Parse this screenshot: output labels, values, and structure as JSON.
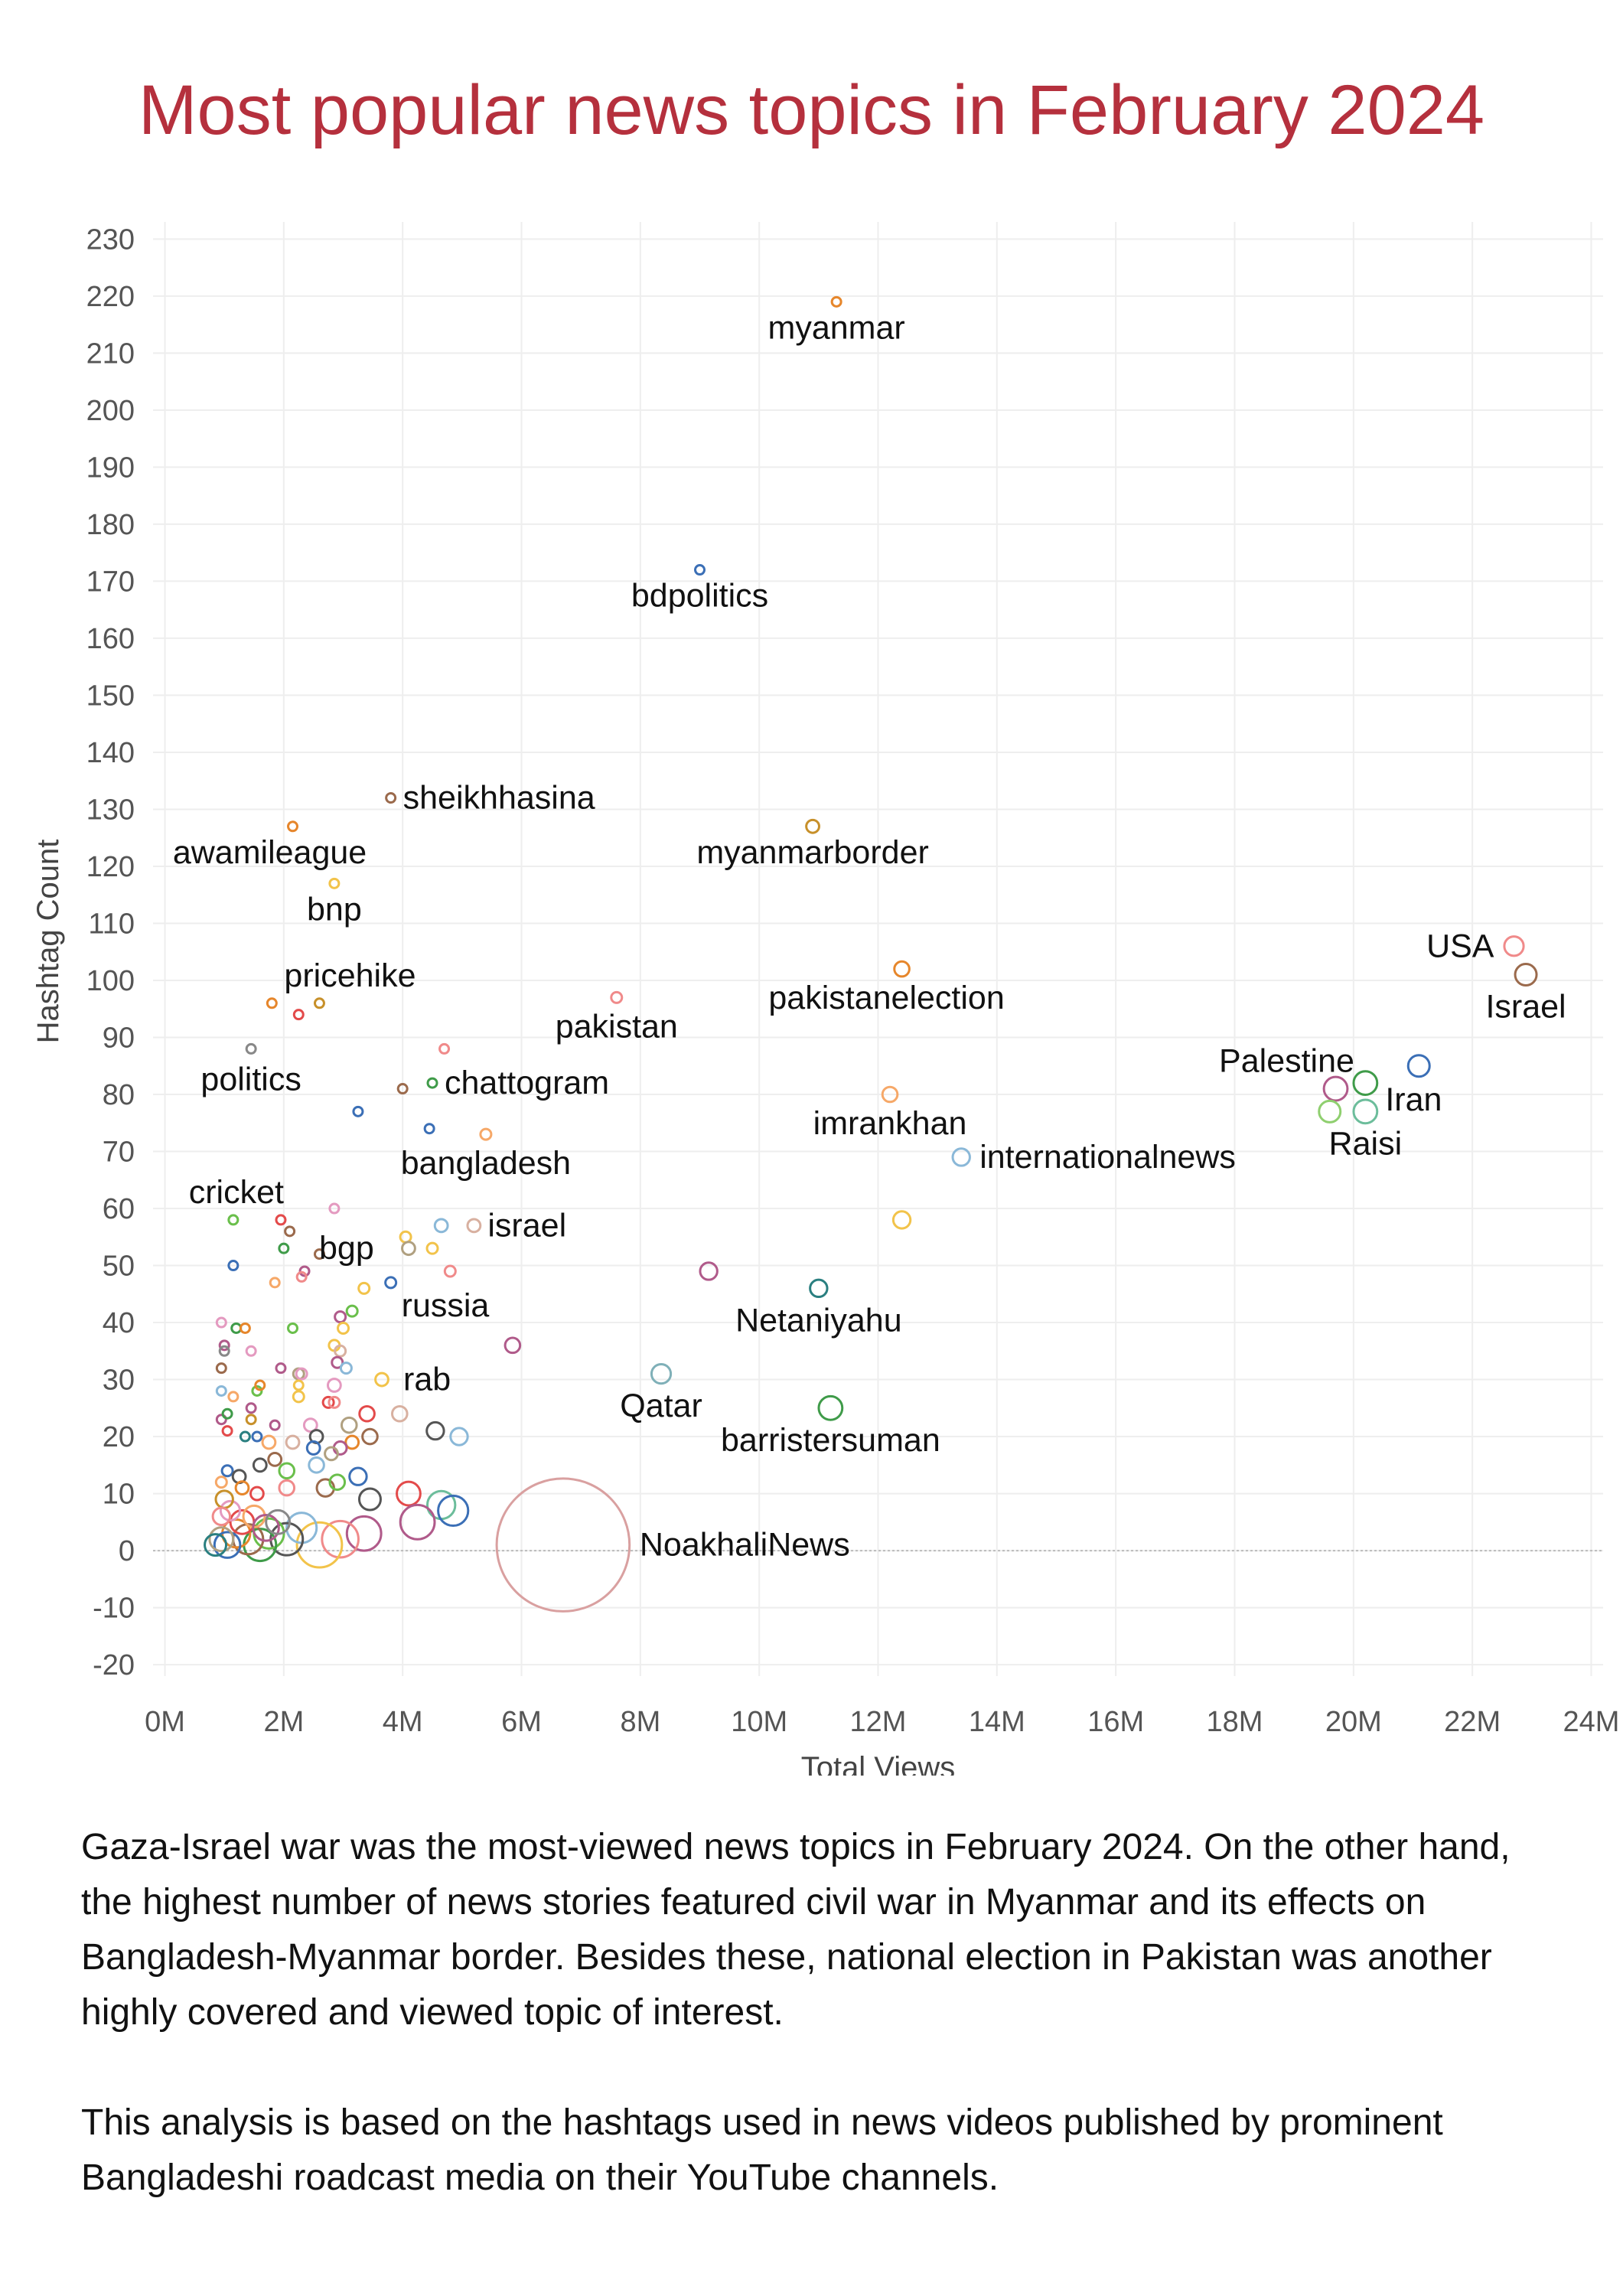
{
  "title": "Most popular news topics in February 2024",
  "paragraphs": [
    "Gaza-Israel war was the most-viewed news topics in February 2024. On the other hand, the highest number of news stories featured civil war in Myanmar and its effects on Bangladesh-Myanmar border. Besides these, national election in Pakistan was another highly covered and viewed topic of interest.",
    "This analysis is based on the hashtags used in news videos published by prominent Bangladeshi roadcast media on their YouTube channels."
  ],
  "chart_data": {
    "type": "scatter",
    "xlabel": "Total Views",
    "ylabel": "Hashtag Count",
    "xlim": [
      -0.2,
      24.2
    ],
    "ylim": [
      -22,
      233
    ],
    "x_unit": "M",
    "x_ticks": [
      0,
      2,
      4,
      6,
      8,
      10,
      12,
      14,
      16,
      18,
      20,
      22,
      24
    ],
    "x_tick_labels": [
      "0M",
      "2M",
      "4M",
      "6M",
      "8M",
      "10M",
      "12M",
      "14M",
      "16M",
      "18M",
      "20M",
      "22M",
      "24M"
    ],
    "y_ticks": [
      -20,
      -10,
      0,
      10,
      20,
      30,
      40,
      50,
      60,
      70,
      80,
      90,
      100,
      110,
      120,
      130,
      140,
      150,
      160,
      170,
      180,
      190,
      200,
      210,
      220,
      230
    ],
    "y_tick_labels": [
      "-20",
      "-10",
      "0",
      "10",
      "20",
      "30",
      "40",
      "50",
      "60",
      "70",
      "80",
      "90",
      "100",
      "110",
      "120",
      "130",
      "140",
      "150",
      "160",
      "170",
      "180",
      "190",
      "200",
      "210",
      "220",
      "230"
    ],
    "grid": true,
    "marker": "open circles, size varies",
    "labeled_points": [
      {
        "label": "myanmar",
        "x": 11.3,
        "y": 219,
        "color": "#e6862b"
      },
      {
        "label": "bdpolitics",
        "x": 9.0,
        "y": 172,
        "color": "#3b6fb6"
      },
      {
        "label": "sheikhhasina",
        "x": 3.8,
        "y": 132,
        "color": "#9b6a4c"
      },
      {
        "label": "awamileague",
        "x": 2.15,
        "y": 127,
        "color": "#e6862b"
      },
      {
        "label": "myanmarborder",
        "x": 10.9,
        "y": 127,
        "color": "#c7902a"
      },
      {
        "label": "bnp",
        "x": 2.85,
        "y": 117,
        "color": "#f2c34a"
      },
      {
        "label": "USA",
        "x": 22.7,
        "y": 106,
        "color": "#f08a8a"
      },
      {
        "label": "pakistanelection",
        "x": 12.4,
        "y": 102,
        "color": "#e6862b"
      },
      {
        "label": "Israel",
        "x": 22.9,
        "y": 101,
        "color": "#9b6a4c"
      },
      {
        "label": "pricehike",
        "x": 2.6,
        "y": 96,
        "color": "#c7902a"
      },
      {
        "label": "pakistan",
        "x": 7.6,
        "y": 97,
        "color": "#f08a8a"
      },
      {
        "label": "politics",
        "x": 1.45,
        "y": 88,
        "color": "#888888"
      },
      {
        "label": "Palestine",
        "x": 19.7,
        "y": 81,
        "color": "#b05a8a"
      },
      {
        "label": "Iran",
        "x": 20.2,
        "y": 82,
        "color": "#3f9b49"
      },
      {
        "label": "chattogram",
        "x": 4.5,
        "y": 82,
        "color": "#3f9b49"
      },
      {
        "label": "imrankhan",
        "x": 12.2,
        "y": 80,
        "color": "#f6a868"
      },
      {
        "label": "bangladesh",
        "x": 5.4,
        "y": 73,
        "color": "#f6a868"
      },
      {
        "label": "Raisi",
        "x": 20.2,
        "y": 77,
        "color": "#6cbd9b"
      },
      {
        "label": "internationalnews",
        "x": 13.4,
        "y": 69,
        "color": "#8ab8d8"
      },
      {
        "label": "cricket",
        "x": 1.15,
        "y": 58,
        "color": "#6abf4b"
      },
      {
        "label": "israel",
        "x": 5.2,
        "y": 57,
        "color": "#d8b0a0"
      },
      {
        "label": "bgp",
        "x": 3.75,
        "y": 53,
        "color": "#b0a080"
      },
      {
        "label": "russia",
        "x": 3.8,
        "y": 47,
        "color": "#3b6fb6"
      },
      {
        "label": "Netaniyahu",
        "x": 11.0,
        "y": 46,
        "color": "#2a7f80"
      },
      {
        "label": "rab",
        "x": 3.65,
        "y": 30,
        "color": "#f2c34a"
      },
      {
        "label": "Qatar",
        "x": 8.35,
        "y": 31,
        "color": "#7fb0b8"
      },
      {
        "label": "barristersuman",
        "x": 11.2,
        "y": 25,
        "color": "#3f9b49"
      },
      {
        "label": "NoakhaliNews",
        "x": 6.7,
        "y": 1,
        "color": "#d9a0a0"
      }
    ],
    "points": [
      {
        "x": 11.3,
        "y": 219,
        "size": 0.4,
        "color": "#e6862b"
      },
      {
        "x": 9.0,
        "y": 172,
        "size": 0.4,
        "color": "#3b6fb6"
      },
      {
        "x": 3.8,
        "y": 132,
        "size": 0.4,
        "color": "#9b6a4c"
      },
      {
        "x": 2.15,
        "y": 127,
        "size": 0.3,
        "color": "#e6862b"
      },
      {
        "x": 10.9,
        "y": 127,
        "size": 0.6,
        "color": "#c7902a"
      },
      {
        "x": 2.85,
        "y": 117,
        "size": 0.3,
        "color": "#f2c34a"
      },
      {
        "x": 22.7,
        "y": 106,
        "size": 0.9,
        "color": "#f08a8a"
      },
      {
        "x": 12.4,
        "y": 102,
        "size": 0.7,
        "color": "#e6862b"
      },
      {
        "x": 22.9,
        "y": 101,
        "size": 1.0,
        "color": "#9b6a4c"
      },
      {
        "x": 1.8,
        "y": 96,
        "size": 0.3,
        "color": "#e6862b"
      },
      {
        "x": 2.6,
        "y": 96,
        "size": 0.3,
        "color": "#c7902a"
      },
      {
        "x": 7.6,
        "y": 97,
        "size": 0.5,
        "color": "#f08a8a"
      },
      {
        "x": 1.45,
        "y": 88,
        "size": 0.3,
        "color": "#888888"
      },
      {
        "x": 4.7,
        "y": 88,
        "size": 0.4,
        "color": "#f08a8a"
      },
      {
        "x": 2.25,
        "y": 94,
        "size": 0.3,
        "color": "#e34a4a"
      },
      {
        "x": 21.1,
        "y": 85,
        "size": 1.0,
        "color": "#3b6fb6"
      },
      {
        "x": 19.7,
        "y": 81,
        "size": 1.1,
        "color": "#b05a8a"
      },
      {
        "x": 20.2,
        "y": 82,
        "size": 1.1,
        "color": "#3f9b49"
      },
      {
        "x": 19.6,
        "y": 77,
        "size": 1.0,
        "color": "#8fcf6f"
      },
      {
        "x": 20.2,
        "y": 77,
        "size": 1.1,
        "color": "#6cbd9b"
      },
      {
        "x": 4.5,
        "y": 82,
        "size": 0.4,
        "color": "#3f9b49"
      },
      {
        "x": 4.0,
        "y": 81,
        "size": 0.4,
        "color": "#9b6a4c"
      },
      {
        "x": 12.2,
        "y": 80,
        "size": 0.7,
        "color": "#f6a868"
      },
      {
        "x": 3.25,
        "y": 77,
        "size": 0.4,
        "color": "#3b6fb6"
      },
      {
        "x": 4.45,
        "y": 74,
        "size": 0.4,
        "color": "#3b6fb6"
      },
      {
        "x": 5.4,
        "y": 73,
        "size": 0.5,
        "color": "#f6a868"
      },
      {
        "x": 13.4,
        "y": 69,
        "size": 0.8,
        "color": "#8ab8d8"
      },
      {
        "x": 1.15,
        "y": 58,
        "size": 0.3,
        "color": "#6abf4b"
      },
      {
        "x": 1.95,
        "y": 58,
        "size": 0.3,
        "color": "#e34a4a"
      },
      {
        "x": 2.85,
        "y": 60,
        "size": 0.4,
        "color": "#e49ac0"
      },
      {
        "x": 2.1,
        "y": 56,
        "size": 0.4,
        "color": "#9b6a4c"
      },
      {
        "x": 4.65,
        "y": 57,
        "size": 0.6,
        "color": "#8ab8d8"
      },
      {
        "x": 5.2,
        "y": 57,
        "size": 0.6,
        "color": "#d8b0a0"
      },
      {
        "x": 12.4,
        "y": 58,
        "size": 0.8,
        "color": "#f2c34a"
      },
      {
        "x": 4.05,
        "y": 55,
        "size": 0.5,
        "color": "#f2c34a"
      },
      {
        "x": 4.5,
        "y": 53,
        "size": 0.5,
        "color": "#f2c34a"
      },
      {
        "x": 4.1,
        "y": 53,
        "size": 0.6,
        "color": "#b0a080"
      },
      {
        "x": 2.0,
        "y": 53,
        "size": 0.4,
        "color": "#3f9b49"
      },
      {
        "x": 2.6,
        "y": 52,
        "size": 0.4,
        "color": "#9b6a4c"
      },
      {
        "x": 1.15,
        "y": 50,
        "size": 0.3,
        "color": "#3b6fb6"
      },
      {
        "x": 2.35,
        "y": 49,
        "size": 0.4,
        "color": "#b05a8a"
      },
      {
        "x": 4.8,
        "y": 49,
        "size": 0.5,
        "color": "#f08a8a"
      },
      {
        "x": 2.3,
        "y": 48,
        "size": 0.4,
        "color": "#f08a8a"
      },
      {
        "x": 9.15,
        "y": 49,
        "size": 0.8,
        "color": "#b05a8a"
      },
      {
        "x": 1.85,
        "y": 47,
        "size": 0.4,
        "color": "#f6a868"
      },
      {
        "x": 3.8,
        "y": 47,
        "size": 0.5,
        "color": "#3b6fb6"
      },
      {
        "x": 3.35,
        "y": 46,
        "size": 0.5,
        "color": "#f2c34a"
      },
      {
        "x": 11.0,
        "y": 46,
        "size": 0.8,
        "color": "#2a7f80"
      },
      {
        "x": 3.15,
        "y": 42,
        "size": 0.5,
        "color": "#6abf4b"
      },
      {
        "x": 2.95,
        "y": 41,
        "size": 0.5,
        "color": "#b05a8a"
      },
      {
        "x": 3.0,
        "y": 39,
        "size": 0.5,
        "color": "#f2c34a"
      },
      {
        "x": 2.15,
        "y": 39,
        "size": 0.4,
        "color": "#6abf4b"
      },
      {
        "x": 0.95,
        "y": 40,
        "size": 0.3,
        "color": "#e49ac0"
      },
      {
        "x": 1.2,
        "y": 39,
        "size": 0.3,
        "color": "#3f9b49"
      },
      {
        "x": 1.35,
        "y": 39,
        "size": 0.4,
        "color": "#e6862b"
      },
      {
        "x": 1.0,
        "y": 36,
        "size": 0.3,
        "color": "#b05a8a"
      },
      {
        "x": 1.0,
        "y": 35,
        "size": 0.3,
        "color": "#888888"
      },
      {
        "x": 1.45,
        "y": 35,
        "size": 0.4,
        "color": "#e49ac0"
      },
      {
        "x": 2.85,
        "y": 36,
        "size": 0.5,
        "color": "#f2c34a"
      },
      {
        "x": 2.95,
        "y": 35,
        "size": 0.5,
        "color": "#d8b0a0"
      },
      {
        "x": 5.85,
        "y": 36,
        "size": 0.7,
        "color": "#b05a8a"
      },
      {
        "x": 0.95,
        "y": 32,
        "size": 0.3,
        "color": "#9b6a4c"
      },
      {
        "x": 1.95,
        "y": 32,
        "size": 0.4,
        "color": "#b05a8a"
      },
      {
        "x": 2.25,
        "y": 31,
        "size": 0.5,
        "color": "#b0a080"
      },
      {
        "x": 2.3,
        "y": 31,
        "size": 0.5,
        "color": "#e49ac0"
      },
      {
        "x": 2.9,
        "y": 33,
        "size": 0.5,
        "color": "#b05a8a"
      },
      {
        "x": 3.05,
        "y": 32,
        "size": 0.5,
        "color": "#8ab8d8"
      },
      {
        "x": 2.85,
        "y": 29,
        "size": 0.6,
        "color": "#e49ac0"
      },
      {
        "x": 3.65,
        "y": 30,
        "size": 0.6,
        "color": "#f2c34a"
      },
      {
        "x": 8.35,
        "y": 31,
        "size": 0.9,
        "color": "#7fb0b8"
      },
      {
        "x": 2.25,
        "y": 29,
        "size": 0.4,
        "color": "#f2c34a"
      },
      {
        "x": 0.95,
        "y": 28,
        "size": 0.3,
        "color": "#8ab8d8"
      },
      {
        "x": 1.15,
        "y": 27,
        "size": 0.3,
        "color": "#f6a868"
      },
      {
        "x": 1.55,
        "y": 28,
        "size": 0.4,
        "color": "#6abf4b"
      },
      {
        "x": 1.6,
        "y": 29,
        "size": 0.4,
        "color": "#e6862b"
      },
      {
        "x": 2.25,
        "y": 27,
        "size": 0.5,
        "color": "#f2c34a"
      },
      {
        "x": 2.75,
        "y": 26,
        "size": 0.5,
        "color": "#e34a4a"
      },
      {
        "x": 2.85,
        "y": 26,
        "size": 0.5,
        "color": "#f08a8a"
      },
      {
        "x": 11.2,
        "y": 25,
        "size": 1.1,
        "color": "#3f9b49"
      },
      {
        "x": 0.95,
        "y": 23,
        "size": 0.3,
        "color": "#b05a8a"
      },
      {
        "x": 1.05,
        "y": 24,
        "size": 0.3,
        "color": "#3f9b49"
      },
      {
        "x": 1.45,
        "y": 25,
        "size": 0.4,
        "color": "#b05a8a"
      },
      {
        "x": 1.45,
        "y": 23,
        "size": 0.4,
        "color": "#c7902a"
      },
      {
        "x": 1.05,
        "y": 21,
        "size": 0.3,
        "color": "#e34a4a"
      },
      {
        "x": 1.35,
        "y": 20,
        "size": 0.4,
        "color": "#2a7f80"
      },
      {
        "x": 1.55,
        "y": 20,
        "size": 0.4,
        "color": "#3b6fb6"
      },
      {
        "x": 1.85,
        "y": 22,
        "size": 0.4,
        "color": "#b05a8a"
      },
      {
        "x": 2.45,
        "y": 22,
        "size": 0.6,
        "color": "#e49ac0"
      },
      {
        "x": 3.1,
        "y": 22,
        "size": 0.7,
        "color": "#b0a080"
      },
      {
        "x": 3.4,
        "y": 24,
        "size": 0.7,
        "color": "#e34a4a"
      },
      {
        "x": 3.95,
        "y": 24,
        "size": 0.7,
        "color": "#d8b0a0"
      },
      {
        "x": 3.45,
        "y": 20,
        "size": 0.7,
        "color": "#9b6a4c"
      },
      {
        "x": 4.55,
        "y": 21,
        "size": 0.8,
        "color": "#555555"
      },
      {
        "x": 4.95,
        "y": 20,
        "size": 0.8,
        "color": "#8ab8d8"
      },
      {
        "x": 2.55,
        "y": 20,
        "size": 0.6,
        "color": "#555555"
      },
      {
        "x": 2.5,
        "y": 18,
        "size": 0.6,
        "color": "#3b6fb6"
      },
      {
        "x": 3.15,
        "y": 19,
        "size": 0.6,
        "color": "#e6862b"
      },
      {
        "x": 2.95,
        "y": 18,
        "size": 0.6,
        "color": "#b05a8a"
      },
      {
        "x": 2.8,
        "y": 17,
        "size": 0.6,
        "color": "#b0a080"
      },
      {
        "x": 2.15,
        "y": 19,
        "size": 0.6,
        "color": "#d8b0a0"
      },
      {
        "x": 1.75,
        "y": 19,
        "size": 0.6,
        "color": "#f6a868"
      },
      {
        "x": 1.85,
        "y": 16,
        "size": 0.6,
        "color": "#9b6a4c"
      },
      {
        "x": 1.6,
        "y": 15,
        "size": 0.6,
        "color": "#555555"
      },
      {
        "x": 2.05,
        "y": 14,
        "size": 0.7,
        "color": "#6abf4b"
      },
      {
        "x": 2.55,
        "y": 15,
        "size": 0.7,
        "color": "#8ab8d8"
      },
      {
        "x": 3.25,
        "y": 13,
        "size": 0.8,
        "color": "#3b6fb6"
      },
      {
        "x": 1.05,
        "y": 14,
        "size": 0.5,
        "color": "#3b6fb6"
      },
      {
        "x": 1.25,
        "y": 13,
        "size": 0.6,
        "color": "#555555"
      },
      {
        "x": 0.95,
        "y": 12,
        "size": 0.5,
        "color": "#f6a868"
      },
      {
        "x": 1.3,
        "y": 11,
        "size": 0.6,
        "color": "#e6862b"
      },
      {
        "x": 1.55,
        "y": 10,
        "size": 0.6,
        "color": "#e34a4a"
      },
      {
        "x": 2.05,
        "y": 11,
        "size": 0.7,
        "color": "#f08a8a"
      },
      {
        "x": 2.7,
        "y": 11,
        "size": 0.8,
        "color": "#9b6a4c"
      },
      {
        "x": 2.9,
        "y": 12,
        "size": 0.7,
        "color": "#6abf4b"
      },
      {
        "x": 3.45,
        "y": 9,
        "size": 1.0,
        "color": "#555555"
      },
      {
        "x": 4.1,
        "y": 10,
        "size": 1.1,
        "color": "#e34a4a"
      },
      {
        "x": 4.65,
        "y": 8,
        "size": 1.3,
        "color": "#6cbd9b"
      },
      {
        "x": 4.85,
        "y": 7,
        "size": 1.4,
        "color": "#3b6fb6"
      },
      {
        "x": 4.25,
        "y": 5,
        "size": 1.6,
        "color": "#b05a8a"
      },
      {
        "x": 3.35,
        "y": 3,
        "size": 1.6,
        "color": "#b05a8a"
      },
      {
        "x": 2.95,
        "y": 2,
        "size": 1.7,
        "color": "#f08a8a"
      },
      {
        "x": 2.6,
        "y": 1,
        "size": 2.1,
        "color": "#f2c34a"
      },
      {
        "x": 2.3,
        "y": 4,
        "size": 1.4,
        "color": "#8ab8d8"
      },
      {
        "x": 2.05,
        "y": 2,
        "size": 1.5,
        "color": "#555555"
      },
      {
        "x": 1.75,
        "y": 3,
        "size": 1.4,
        "color": "#6abf4b"
      },
      {
        "x": 1.6,
        "y": 1,
        "size": 1.5,
        "color": "#3f9b49"
      },
      {
        "x": 1.4,
        "y": 2,
        "size": 1.4,
        "color": "#9b6a4c"
      },
      {
        "x": 1.2,
        "y": 3,
        "size": 1.3,
        "color": "#e6862b"
      },
      {
        "x": 1.05,
        "y": 1,
        "size": 1.2,
        "color": "#3b6fb6"
      },
      {
        "x": 0.95,
        "y": 2,
        "size": 1.1,
        "color": "#b0a080"
      },
      {
        "x": 0.85,
        "y": 1,
        "size": 1.0,
        "color": "#2a7f80"
      },
      {
        "x": 1.3,
        "y": 5,
        "size": 1.1,
        "color": "#e34a4a"
      },
      {
        "x": 1.5,
        "y": 6,
        "size": 1.0,
        "color": "#f6a868"
      },
      {
        "x": 1.1,
        "y": 7,
        "size": 0.9,
        "color": "#e49ac0"
      },
      {
        "x": 1.7,
        "y": 4,
        "size": 1.2,
        "color": "#b05a8a"
      },
      {
        "x": 1.9,
        "y": 5,
        "size": 1.1,
        "color": "#888888"
      },
      {
        "x": 1.0,
        "y": 9,
        "size": 0.8,
        "color": "#c7902a"
      },
      {
        "x": 0.95,
        "y": 6,
        "size": 0.8,
        "color": "#f08a8a"
      },
      {
        "x": 6.7,
        "y": 1,
        "size": 6.2,
        "color": "#d9a0a0"
      }
    ]
  }
}
